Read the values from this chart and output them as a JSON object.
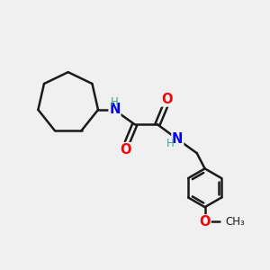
{
  "background_color": "#f0f0f0",
  "bond_color": "#1a1a1a",
  "N_color": "#0000ff",
  "O_color": "#ff0000",
  "H_color": "#4d9999",
  "line_width": 1.8,
  "figsize": [
    3.0,
    3.0
  ],
  "dpi": 100,
  "xlim": [
    0,
    10
  ],
  "ylim": [
    0,
    10
  ]
}
